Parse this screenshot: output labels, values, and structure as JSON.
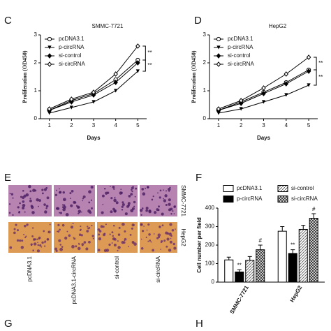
{
  "panels": [
    "C",
    "D",
    "E",
    "F",
    "G",
    "H"
  ],
  "images": {
    "columns": [
      "pcDNA3.1",
      "pcDNA3.1-circRNA",
      "si-control",
      "si-circRNA"
    ],
    "rows": [
      "SMMC-7721",
      "HepG2"
    ]
  },
  "chart_data": [
    {
      "type": "line",
      "title": "SMMC-7721",
      "x_label": "Days",
      "y_label": "Proliferation (OD450)",
      "x": [
        1,
        2,
        3,
        4,
        5
      ],
      "xlim": [
        0.6,
        5.4
      ],
      "xticks": [
        1,
        2,
        3,
        4,
        5
      ],
      "ylim": [
        0,
        3
      ],
      "yticks": [
        0,
        1,
        2,
        3
      ],
      "series": [
        {
          "name": "pcDNA3.1",
          "color": "#000000",
          "marker": "open-circle",
          "values": [
            0.3,
            0.65,
            0.9,
            1.4,
            2.1
          ]
        },
        {
          "name": "p-circRNA",
          "color": "#000000",
          "marker": "filled-triangle",
          "values": [
            0.2,
            0.4,
            0.6,
            1.0,
            1.7
          ]
        },
        {
          "name": "si-control",
          "color": "#000000",
          "marker": "filled-diamond",
          "values": [
            0.3,
            0.6,
            0.85,
            1.3,
            2.0
          ]
        },
        {
          "name": "si-circRNA",
          "color": "#000000",
          "marker": "open-diamond",
          "values": [
            0.35,
            0.7,
            0.95,
            1.6,
            2.6
          ]
        }
      ],
      "annotations": [
        "**",
        "**"
      ]
    },
    {
      "type": "line",
      "title": "HepG2",
      "x_label": "Days",
      "y_label": "Proliferation (OD450)",
      "x": [
        1,
        2,
        3,
        4,
        5
      ],
      "xlim": [
        0.6,
        5.4
      ],
      "xticks": [
        1,
        2,
        3,
        4,
        5
      ],
      "ylim": [
        0,
        3
      ],
      "yticks": [
        0,
        1,
        2,
        3
      ],
      "series": [
        {
          "name": "pcDNA3.1",
          "color": "#000000",
          "marker": "open-circle",
          "values": [
            0.3,
            0.6,
            0.95,
            1.3,
            1.75
          ]
        },
        {
          "name": "p-circRNA",
          "color": "#000000",
          "marker": "filled-triangle",
          "values": [
            0.2,
            0.35,
            0.6,
            0.85,
            1.2
          ]
        },
        {
          "name": "si-control",
          "color": "#000000",
          "marker": "filled-diamond",
          "values": [
            0.3,
            0.55,
            0.9,
            1.25,
            1.7
          ]
        },
        {
          "name": "si-circRNA",
          "color": "#000000",
          "marker": "open-diamond",
          "values": [
            0.35,
            0.65,
            1.1,
            1.6,
            2.2
          ]
        }
      ],
      "annotations": [
        "**",
        "**"
      ]
    },
    {
      "type": "bar",
      "y_label": "Cell number per field",
      "categories": [
        "SMMC-7721",
        "HepG2"
      ],
      "ylim": [
        0,
        400
      ],
      "yticks": [
        0,
        100,
        200,
        300,
        400
      ],
      "series": [
        {
          "name": "pcDNA3.1",
          "color": "#ffffff",
          "pattern": "solid",
          "values": [
            120,
            275
          ],
          "errors": [
            15,
            25
          ]
        },
        {
          "name": "p-circRNA",
          "color": "#000000",
          "pattern": "solid",
          "values": [
            55,
            155
          ],
          "errors": [
            12,
            20
          ],
          "annotations": [
            "**",
            "**"
          ]
        },
        {
          "name": "si-control",
          "color": "#666666",
          "pattern": "hatch",
          "values": [
            118,
            285
          ],
          "errors": [
            20,
            22
          ]
        },
        {
          "name": "si-circRNA",
          "color": "#333333",
          "pattern": "cross",
          "values": [
            175,
            345
          ],
          "errors": [
            25,
            25
          ],
          "annotations": [
            "#",
            "#"
          ]
        }
      ]
    }
  ]
}
